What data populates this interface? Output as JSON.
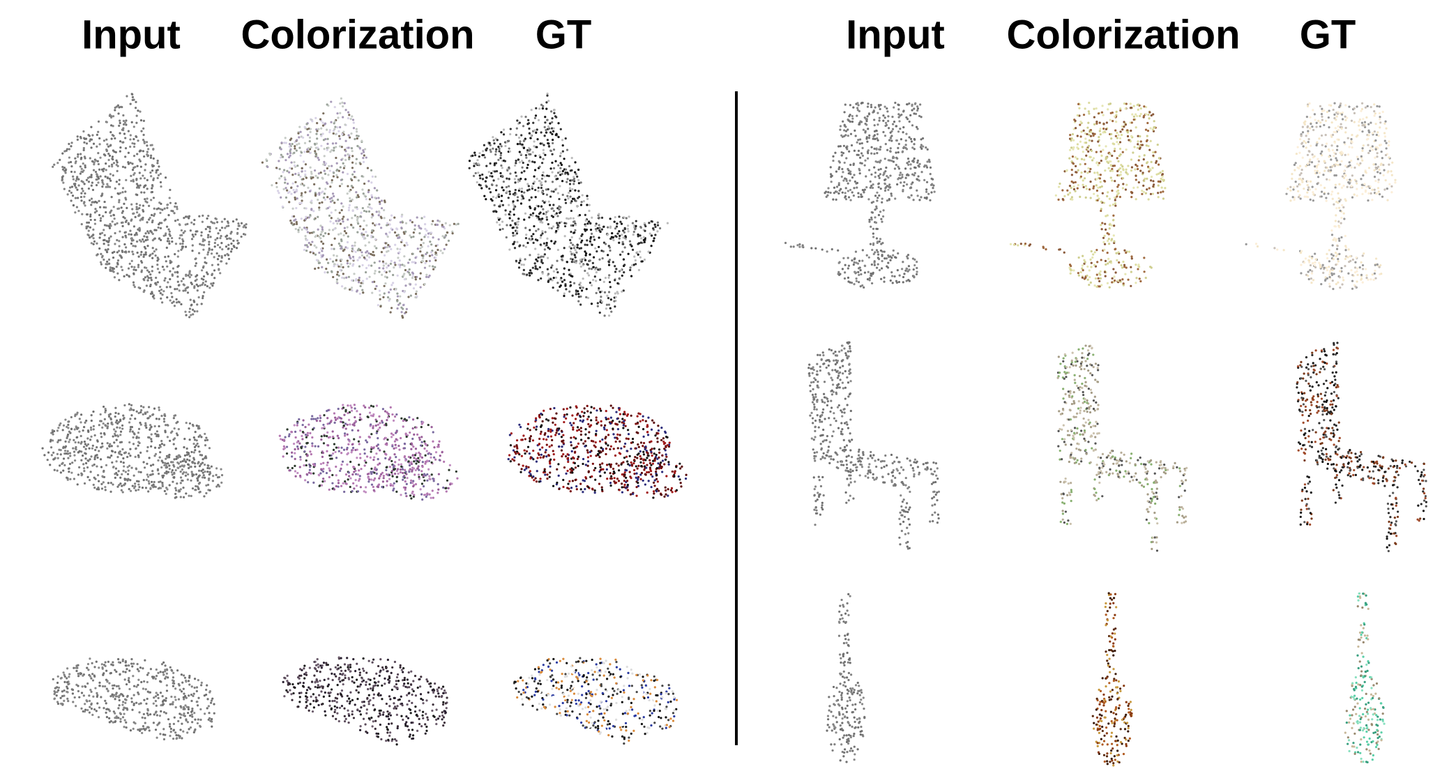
{
  "headers": {
    "left": [
      "Input",
      "Colorization",
      "GT"
    ],
    "right": [
      "Input",
      "Colorization",
      "GT"
    ]
  }
}
